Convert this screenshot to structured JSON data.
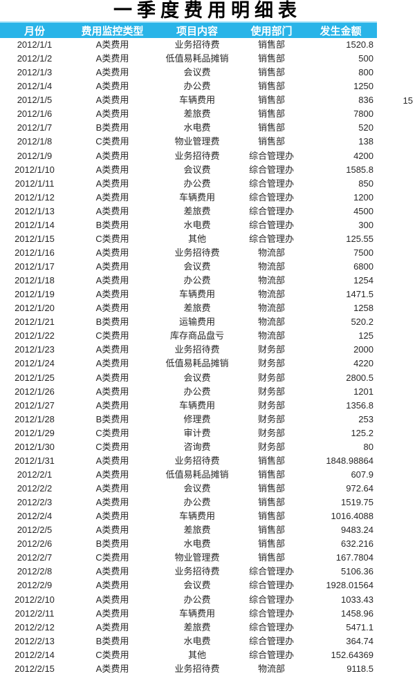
{
  "title": "一季度费用明细表",
  "table": {
    "columns": [
      "月份",
      "费用监控类型",
      "项目内容",
      "使用部门",
      "发生金额"
    ],
    "column_keys": [
      "month",
      "expense-type",
      "item",
      "department",
      "amount"
    ],
    "rows": [
      [
        "2012/1/1",
        "A类费用",
        "业务招待费",
        "销售部",
        "1520.8"
      ],
      [
        "2012/1/2",
        "A类费用",
        "低值易耗品摊销",
        "销售部",
        "500"
      ],
      [
        "2012/1/3",
        "A类费用",
        "会议费",
        "销售部",
        "800"
      ],
      [
        "2012/1/4",
        "A类费用",
        "办公费",
        "销售部",
        "1250"
      ],
      [
        "2012/1/5",
        "A类费用",
        "车辆费用",
        "销售部",
        "836"
      ],
      [
        "2012/1/6",
        "A类费用",
        "差旅费",
        "销售部",
        "7800"
      ],
      [
        "2012/1/7",
        "B类费用",
        "水电费",
        "销售部",
        "520"
      ],
      [
        "2012/1/8",
        "C类费用",
        "物业管理费",
        "销售部",
        "138"
      ],
      [
        "2012/1/9",
        "A类费用",
        "业务招待费",
        "综合管理办",
        "4200"
      ],
      [
        "2012/1/10",
        "A类费用",
        "会议费",
        "综合管理办",
        "1585.8"
      ],
      [
        "2012/1/11",
        "A类费用",
        "办公费",
        "综合管理办",
        "850"
      ],
      [
        "2012/1/12",
        "A类费用",
        "车辆费用",
        "综合管理办",
        "1200"
      ],
      [
        "2012/1/13",
        "A类费用",
        "差旅费",
        "综合管理办",
        "4500"
      ],
      [
        "2012/1/14",
        "B类费用",
        "水电费",
        "综合管理办",
        "300"
      ],
      [
        "2012/1/15",
        "C类费用",
        "其他",
        "综合管理办",
        "125.55"
      ],
      [
        "2012/1/16",
        "A类费用",
        "业务招待费",
        "物流部",
        "7500"
      ],
      [
        "2012/1/17",
        "A类费用",
        "会议费",
        "物流部",
        "6800"
      ],
      [
        "2012/1/18",
        "A类费用",
        "办公费",
        "物流部",
        "1254"
      ],
      [
        "2012/1/19",
        "A类费用",
        "车辆费用",
        "物流部",
        "1471.5"
      ],
      [
        "2012/1/20",
        "A类费用",
        "差旅费",
        "物流部",
        "1258"
      ],
      [
        "2012/1/21",
        "B类费用",
        "运输费用",
        "物流部",
        "520.2"
      ],
      [
        "2012/1/22",
        "C类费用",
        "库存商品盘亏",
        "物流部",
        "125"
      ],
      [
        "2012/1/23",
        "A类费用",
        "业务招待费",
        "财务部",
        "2000"
      ],
      [
        "2012/1/24",
        "A类费用",
        "低值易耗品摊销",
        "财务部",
        "4220"
      ],
      [
        "2012/1/25",
        "A类费用",
        "会议费",
        "财务部",
        "2800.5"
      ],
      [
        "2012/1/26",
        "A类费用",
        "办公费",
        "财务部",
        "1201"
      ],
      [
        "2012/1/27",
        "A类费用",
        "车辆费用",
        "财务部",
        "1356.8"
      ],
      [
        "2012/1/28",
        "B类费用",
        "修理费",
        "财务部",
        "253"
      ],
      [
        "2012/1/29",
        "C类费用",
        "审计费",
        "财务部",
        "125.2"
      ],
      [
        "2012/1/30",
        "C类费用",
        "咨询费",
        "财务部",
        "80"
      ],
      [
        "2012/1/31",
        "A类费用",
        "业务招待费",
        "销售部",
        "1848.98864"
      ],
      [
        "2012/2/1",
        "A类费用",
        "低值易耗品摊销",
        "销售部",
        "607.9"
      ],
      [
        "2012/2/2",
        "A类费用",
        "会议费",
        "销售部",
        "972.64"
      ],
      [
        "2012/2/3",
        "A类费用",
        "办公费",
        "销售部",
        "1519.75"
      ],
      [
        "2012/2/4",
        "A类费用",
        "车辆费用",
        "销售部",
        "1016.4088"
      ],
      [
        "2012/2/5",
        "A类费用",
        "差旅费",
        "销售部",
        "9483.24"
      ],
      [
        "2012/2/6",
        "B类费用",
        "水电费",
        "销售部",
        "632.216"
      ],
      [
        "2012/2/7",
        "C类费用",
        "物业管理费",
        "销售部",
        "167.7804"
      ],
      [
        "2012/2/8",
        "A类费用",
        "业务招待费",
        "综合管理办",
        "5106.36"
      ],
      [
        "2012/2/9",
        "A类费用",
        "会议费",
        "综合管理办",
        "1928.01564"
      ],
      [
        "2012/2/10",
        "A类费用",
        "办公费",
        "综合管理办",
        "1033.43"
      ],
      [
        "2012/2/11",
        "A类费用",
        "车辆费用",
        "综合管理办",
        "1458.96"
      ],
      [
        "2012/2/12",
        "A类费用",
        "差旅费",
        "综合管理办",
        "5471.1"
      ],
      [
        "2012/2/13",
        "B类费用",
        "水电费",
        "综合管理办",
        "364.74"
      ],
      [
        "2012/2/14",
        "C类费用",
        "其他",
        "综合管理办",
        "152.64369"
      ],
      [
        "2012/2/15",
        "A类费用",
        "业务招待费",
        "物流部",
        "9118.5"
      ]
    ]
  },
  "overflow_cell": {
    "value": "15"
  },
  "colors": {
    "header_bg": "#29b4e8",
    "header_top_edge": "#9adef6",
    "header_text": "#ffffff",
    "body_text": "#262626",
    "title_text": "#000000",
    "background": "#ffffff"
  }
}
